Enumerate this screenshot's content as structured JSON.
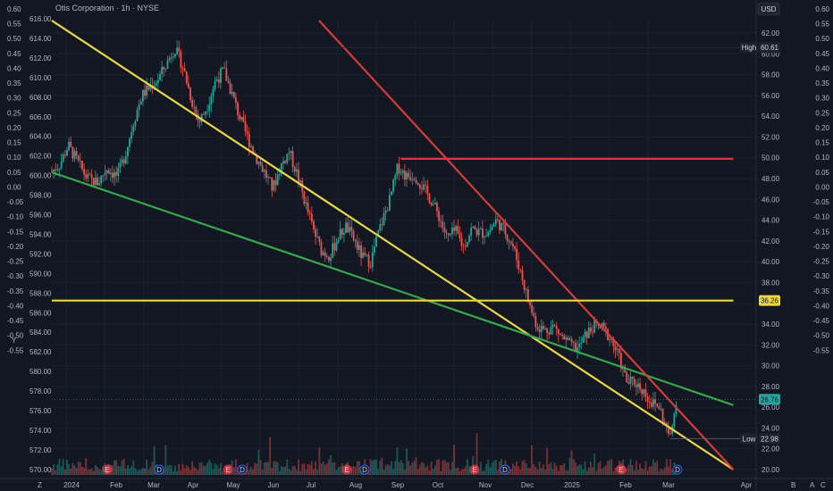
{
  "header": {
    "title": "Otis Corporation · 1h · NYSE",
    "currency": "USD"
  },
  "chart_data": {
    "type": "line",
    "title": "Otis Corporation · 1h · NYSE",
    "x_labels": [
      "2024",
      "Feb",
      "Mar",
      "Apr",
      "May",
      "Jun",
      "Jul",
      "Aug",
      "Sep",
      "Oct",
      "Nov",
      "Dec",
      "2025",
      "Feb",
      "Mar",
      "Apr"
    ],
    "left_axis_outer": {
      "ticks": [
        "0.60",
        "0.55",
        "0.50",
        "0.45",
        "0.40",
        "0.35",
        "0.30",
        "0.25",
        "0.20",
        "0.15",
        "0.10",
        "0.05",
        "0.00",
        "-0.05",
        "-0.10",
        "-0.15",
        "-0.20",
        "-0.25",
        "-0.30",
        "-0.35",
        "-0.40",
        "-0.45",
        "-0.50",
        "-0.55"
      ],
      "range": [
        -0.55,
        0.6
      ]
    },
    "left_axis_inner": {
      "ticks": [
        "616.00",
        "614.00",
        "612.00",
        "610.00",
        "608.00",
        "606.00",
        "604.00",
        "602.00",
        "600.00",
        "598.00",
        "596.00",
        "594.00",
        "592.00",
        "590.00",
        "588.00",
        "586.00",
        "584.00",
        "582.00",
        "580.00",
        "578.00",
        "576.00",
        "574.00",
        "572.00",
        "570.00"
      ],
      "range": [
        570,
        616
      ]
    },
    "price_axis": {
      "ticks": [
        "62.00",
        "60.00",
        "58.00",
        "56.00",
        "54.00",
        "52.00",
        "50.00",
        "48.00",
        "46.00",
        "44.00",
        "42.00",
        "40.00",
        "38.00",
        "36.00",
        "34.00",
        "32.00",
        "30.00",
        "28.00",
        "26.00",
        "24.00",
        "22.00",
        "20.00"
      ],
      "range": [
        20,
        62
      ]
    },
    "right_axis": {
      "ticks": [
        "0.60",
        "0.55",
        "0.50",
        "0.45",
        "0.40",
        "0.35",
        "0.30",
        "0.25",
        "0.20",
        "0.15",
        "0.10",
        "0.05",
        "0.00",
        "-0.05",
        "-0.10",
        "-0.15",
        "-0.20",
        "-0.25",
        "-0.30",
        "-0.35",
        "-0.40",
        "-0.45",
        "-0.50",
        "-0.55"
      ],
      "range": [
        -0.55,
        0.6
      ]
    },
    "series": [
      {
        "name": "",
        "color": "#26a69a",
        "points": [
          [
            0,
            48.7
          ],
          [
            0.3,
            49.4
          ],
          [
            0.6,
            51.2
          ],
          [
            0.9,
            49.8
          ],
          [
            1.3,
            48.0
          ],
          [
            1.7,
            47.6
          ],
          [
            2.0,
            49.0
          ],
          [
            2.4,
            48.2
          ],
          [
            2.7,
            50.4
          ],
          [
            3.0,
            53.5
          ],
          [
            3.3,
            56.0
          ],
          [
            3.6,
            56.8
          ],
          [
            3.9,
            57.6
          ],
          [
            4.2,
            59.0
          ],
          [
            4.5,
            60.6
          ],
          [
            4.8,
            58.8
          ],
          [
            5.1,
            55.8
          ],
          [
            5.4,
            53.4
          ],
          [
            5.7,
            55.0
          ],
          [
            6.0,
            57.4
          ],
          [
            6.3,
            58.4
          ],
          [
            6.6,
            56.2
          ],
          [
            6.9,
            53.8
          ],
          [
            7.2,
            51.8
          ],
          [
            7.5,
            50.0
          ],
          [
            7.8,
            48.6
          ],
          [
            8.1,
            47.0
          ],
          [
            8.4,
            49.2
          ],
          [
            8.7,
            50.6
          ],
          [
            9.0,
            48.4
          ],
          [
            9.3,
            45.6
          ],
          [
            9.6,
            43.0
          ],
          [
            9.9,
            41.0
          ],
          [
            10.2,
            40.6
          ],
          [
            10.5,
            42.4
          ],
          [
            10.8,
            43.4
          ],
          [
            11.1,
            42.0
          ],
          [
            11.4,
            40.4
          ],
          [
            11.7,
            40.0
          ],
          [
            12.0,
            43.0
          ],
          [
            12.4,
            46.0
          ],
          [
            12.7,
            49.2
          ],
          [
            13.0,
            48.2
          ],
          [
            13.3,
            48.4
          ],
          [
            13.6,
            47.2
          ],
          [
            13.9,
            46.0
          ],
          [
            14.2,
            44.4
          ],
          [
            14.5,
            42.2
          ],
          [
            14.8,
            43.0
          ],
          [
            15.1,
            41.4
          ],
          [
            15.4,
            43.2
          ],
          [
            15.7,
            42.8
          ],
          [
            16.0,
            42.8
          ],
          [
            16.3,
            44.0
          ],
          [
            16.6,
            43.0
          ],
          [
            16.9,
            41.6
          ],
          [
            17.2,
            39.0
          ],
          [
            17.5,
            36.0
          ],
          [
            17.8,
            33.8
          ],
          [
            18.1,
            33.4
          ],
          [
            18.4,
            33.8
          ],
          [
            18.7,
            32.8
          ],
          [
            19.0,
            32.0
          ],
          [
            19.3,
            31.6
          ],
          [
            19.6,
            33.0
          ],
          [
            19.9,
            33.8
          ],
          [
            20.2,
            33.6
          ],
          [
            20.5,
            32.6
          ],
          [
            20.8,
            30.8
          ],
          [
            21.1,
            28.4
          ],
          [
            21.4,
            28.4
          ],
          [
            21.7,
            27.6
          ],
          [
            22.0,
            26.4
          ],
          [
            22.3,
            26.0
          ],
          [
            22.5,
            24.2
          ],
          [
            22.7,
            22.98
          ],
          [
            22.9,
            26.76
          ]
        ]
      }
    ],
    "volume": "per-bar volume histogram along the bottom (values not labeled)",
    "trendlines": [
      {
        "name": "",
        "color": "#e9d64a",
        "from": [
          0,
          63.2
        ],
        "to": [
          25,
          20.0
        ]
      },
      {
        "name": "",
        "color": "#37a84b",
        "from": [
          0,
          48.6
        ],
        "to": [
          25,
          26.2
        ]
      },
      {
        "name": "",
        "color": "#d43b3b",
        "from": [
          9.8,
          63.2
        ],
        "to": [
          25,
          20.0
        ]
      },
      {
        "name": "",
        "color": "#d43b3b",
        "horizontal": true,
        "from": [
          12.8,
          49.9
        ],
        "to": [
          25,
          49.9
        ]
      },
      {
        "name": "",
        "color": "#e9d64a",
        "horizontal": true,
        "from": [
          0,
          36.26
        ],
        "to": [
          25,
          36.26
        ]
      }
    ],
    "markers": [
      {
        "label": "High",
        "value": "60.61"
      },
      {
        "label": "",
        "value": "36.26"
      },
      {
        "label": "",
        "value": "26.76"
      },
      {
        "label": "Low",
        "value": "22.98"
      }
    ],
    "event_badges": [
      "E",
      "D",
      "E",
      "D",
      "E",
      "D",
      "E",
      "D",
      "E",
      "D"
    ],
    "bottom_left_labels": [
      "Y",
      "Z"
    ],
    "bottom_right_labels": [
      "B",
      "A",
      "C"
    ],
    "colors": {
      "up": "#26a69a",
      "down": "#ef5350",
      "background": "#131722",
      "grid": "#1f2433"
    }
  }
}
